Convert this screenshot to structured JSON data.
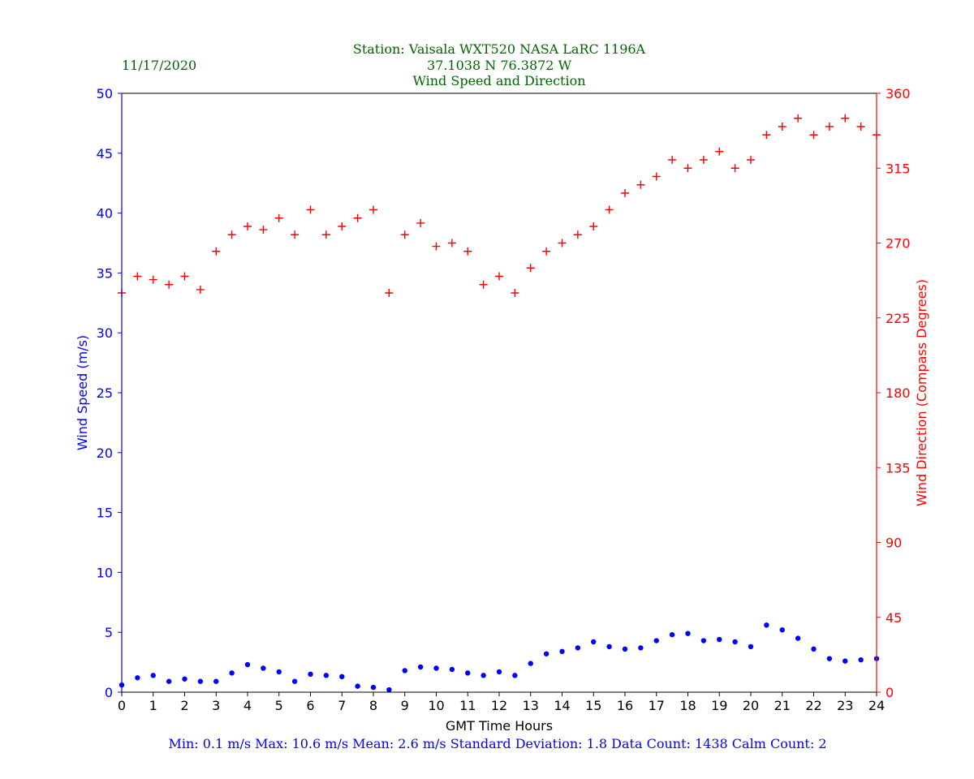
{
  "header": {
    "date": "11/17/2020",
    "title_line1": "Station:  Vaisala WXT520  NASA LaRC 1196A",
    "title_line2": "37.1038 N 76.3872 W",
    "title_line3": "Wind Speed and Direction"
  },
  "footer": {
    "stats": "Min: 0.1 m/s   Max: 10.6 m/s   Mean: 2.6 m/s  Standard Deviation: 1.8  Data Count: 1438  Calm Count:  2"
  },
  "colors": {
    "speed": "#0000ff",
    "direction": "#ff0000",
    "title": "#006400",
    "axis": "#000000"
  },
  "chart_data": {
    "type": "scatter",
    "xlabel": "GMT Time Hours",
    "ylabel_left": "Wind Speed (m/s)",
    "ylabel_right": "Wind Direction (Compass Degrees)",
    "xlim": [
      0,
      24
    ],
    "ylim_left": [
      0,
      50
    ],
    "ylim_right": [
      0,
      360
    ],
    "x_ticks": [
      "0",
      "1",
      "2",
      "3",
      "4",
      "5",
      "6",
      "7",
      "8",
      "9",
      "10",
      "11",
      "12",
      "13",
      "14",
      "15",
      "16",
      "17",
      "18",
      "19",
      "20",
      "21",
      "22",
      "23",
      "24"
    ],
    "y_left_ticks": [
      "0",
      "5",
      "10",
      "15",
      "20",
      "25",
      "30",
      "35",
      "40",
      "45",
      "50"
    ],
    "y_right_ticks": [
      "0",
      "45",
      "90",
      "135",
      "180",
      "225",
      "270",
      "315",
      "360"
    ],
    "grid": false,
    "series": [
      {
        "name": "Wind Speed",
        "axis": "left",
        "marker": "circle",
        "x": [
          0,
          0.5,
          1,
          1.5,
          2,
          2.5,
          3,
          3.5,
          4,
          4.5,
          5,
          5.5,
          6,
          6.5,
          7,
          7.5,
          8,
          8.5,
          9,
          9.5,
          10,
          10.5,
          11,
          11.5,
          12,
          12.5,
          13,
          13.5,
          14,
          14.5,
          15,
          15.5,
          16,
          16.5,
          17,
          17.5,
          18,
          18.5,
          19,
          19.5,
          20,
          20.5,
          21,
          21.5,
          22,
          22.5,
          23,
          23.5,
          24
        ],
        "values": [
          0.6,
          1.2,
          1.4,
          0.9,
          1.1,
          0.9,
          0.9,
          1.6,
          2.3,
          2.0,
          1.7,
          0.9,
          1.5,
          1.4,
          1.3,
          0.5,
          0.4,
          0.2,
          1.8,
          2.1,
          2.0,
          1.9,
          1.6,
          1.4,
          1.7,
          1.4,
          2.4,
          3.2,
          3.4,
          3.7,
          4.2,
          3.8,
          3.6,
          3.7,
          4.3,
          4.8,
          4.9,
          4.3,
          4.4,
          4.2,
          3.8,
          5.6,
          5.2,
          4.5,
          3.6,
          2.8,
          2.6,
          2.7,
          2.8
        ]
      },
      {
        "name": "Wind Direction",
        "axis": "right",
        "marker": "plus",
        "x": [
          0,
          0.5,
          1,
          1.5,
          2,
          2.5,
          3,
          3.5,
          4,
          4.5,
          5,
          5.5,
          6,
          6.5,
          7,
          7.5,
          8,
          8.5,
          9,
          9.5,
          10,
          10.5,
          11,
          11.5,
          12,
          12.5,
          13,
          13.5,
          14,
          14.5,
          15,
          15.5,
          16,
          16.5,
          17,
          17.5,
          18,
          18.5,
          19,
          19.5,
          20,
          20.5,
          21,
          21.5,
          22,
          22.5,
          23,
          23.5,
          24
        ],
        "values": [
          240,
          250,
          248,
          245,
          250,
          242,
          265,
          275,
          280,
          278,
          285,
          275,
          290,
          275,
          280,
          285,
          290,
          240,
          275,
          282,
          268,
          270,
          265,
          245,
          250,
          240,
          255,
          265,
          270,
          275,
          280,
          290,
          300,
          305,
          310,
          320,
          315,
          320,
          325,
          315,
          320,
          335,
          340,
          345,
          335,
          340,
          345,
          340,
          335
        ]
      }
    ]
  }
}
